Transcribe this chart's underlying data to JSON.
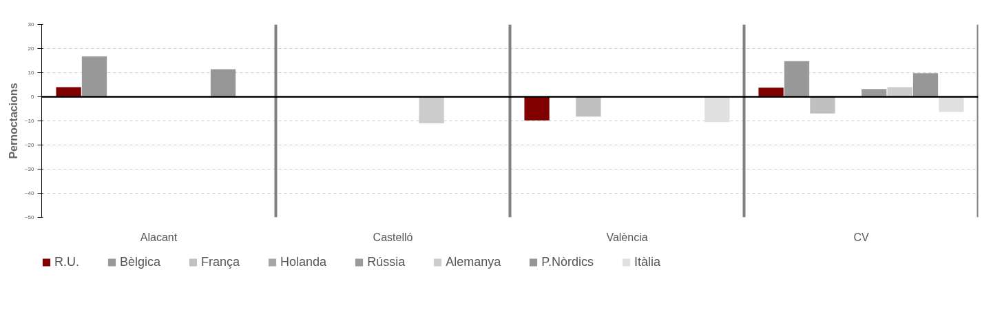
{
  "chart_data": {
    "type": "bar",
    "ylabel": "Pernoctacions",
    "categories": [
      "Alacant",
      "Castelló",
      "València",
      "CV"
    ],
    "series": [
      {
        "name": "R.U.",
        "color": "#800000",
        "values": [
          4.0,
          null,
          -9.8,
          3.8
        ]
      },
      {
        "name": "Bèlgica",
        "color": "#999999",
        "values": [
          16.8,
          null,
          null,
          14.8
        ]
      },
      {
        "name": "França",
        "color": "#c0c0c0",
        "values": [
          null,
          null,
          -8.2,
          -6.9
        ]
      },
      {
        "name": "Holanda",
        "color": "#a6a6a6",
        "values": [
          null,
          null,
          null,
          null
        ]
      },
      {
        "name": "Rússia",
        "color": "#9a9a9a",
        "values": [
          null,
          null,
          null,
          3.2
        ]
      },
      {
        "name": "Alemanya",
        "color": "#cccccc",
        "values": [
          null,
          -11.0,
          null,
          4.0
        ]
      },
      {
        "name": "P.Nòrdics",
        "color": "#969696",
        "values": [
          11.4,
          null,
          null,
          9.8
        ]
      },
      {
        "name": "Itàlia",
        "color": "#e0e0e0",
        "values": [
          null,
          null,
          -10.5,
          -6.3
        ]
      }
    ],
    "ylim": [
      -50,
      30
    ],
    "yticks": [
      -50,
      -40,
      -30,
      -20,
      -10,
      0,
      10,
      20,
      30
    ],
    "grid": "y",
    "legend": "bottom"
  }
}
